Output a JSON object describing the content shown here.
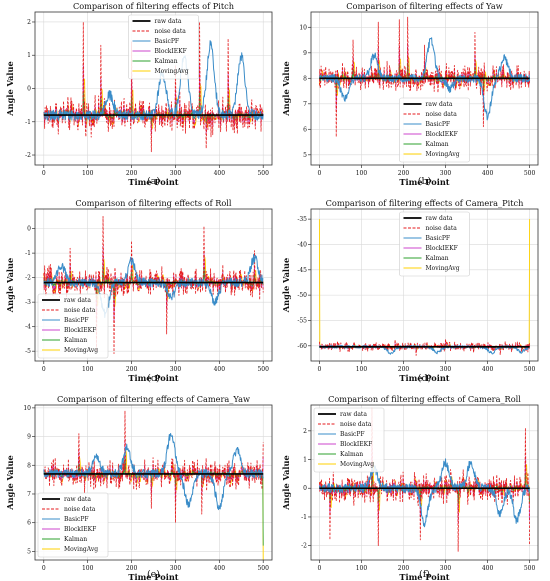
{
  "colors": {
    "raw": "#000000",
    "noise": "#e41a1c",
    "basicpf": "#3a8cc8",
    "blockiekf": "#cc44cc",
    "kalman": "#2ca02c",
    "movingavg": "#ffd200",
    "grid": "#d9d9d9",
    "axis": "#333333"
  },
  "chart_data": [
    {
      "type": "line",
      "panel_label": "(a)",
      "title": "Comparison of filtering effects of Pitch",
      "xlabel": "Time Point",
      "ylabel": "Angle Value",
      "xlim": [
        -20,
        520
      ],
      "ylim": [
        -2.3,
        2.3
      ],
      "xticks": [
        0,
        100,
        200,
        300,
        400,
        500
      ],
      "yticks": [
        -2,
        -1,
        0,
        1,
        2
      ],
      "grid": true,
      "legend": "top-center",
      "legend_entries": [
        "raw data",
        "noise data",
        "BasicPF",
        "BlockIEKF",
        "Kalman",
        "MovingAvg"
      ],
      "base_value": -0.8,
      "noise_amplitude": 0.35,
      "basicpf_excursions": [
        [
          150,
          -0.2
        ],
        [
          270,
          0.5
        ],
        [
          320,
          1.0
        ],
        [
          380,
          1.3
        ],
        [
          450,
          1.0
        ]
      ],
      "noise_spikes": [
        [
          90,
          2.0
        ],
        [
          130,
          1.3
        ],
        [
          200,
          1.4
        ],
        [
          245,
          -1.9
        ],
        [
          300,
          0.7
        ],
        [
          355,
          2.0
        ],
        [
          370,
          -1.8
        ],
        [
          420,
          1.5
        ]
      ]
    },
    {
      "type": "line",
      "panel_label": "(b)",
      "title": "Comparison of filtering effects of Yaw",
      "xlabel": "Time Point",
      "ylabel": "Angle Value",
      "xlim": [
        -20,
        520
      ],
      "ylim": [
        4.6,
        10.6
      ],
      "xticks": [
        0,
        100,
        200,
        300,
        400,
        500
      ],
      "yticks": [
        5,
        6,
        7,
        8,
        9,
        10
      ],
      "grid": true,
      "legend": "bottom-center",
      "legend_entries": [
        "raw data",
        "noise data",
        "BasicPF",
        "BlockIEKF",
        "Kalman",
        "MovingAvg"
      ],
      "base_value": 8.0,
      "noise_amplitude": 0.35,
      "basicpf_excursions": [
        [
          60,
          7.2
        ],
        [
          130,
          8.9
        ],
        [
          265,
          9.5
        ],
        [
          310,
          7.6
        ],
        [
          400,
          6.5
        ],
        [
          440,
          8.8
        ]
      ],
      "noise_spikes": [
        [
          40,
          5.7
        ],
        [
          80,
          9.5
        ],
        [
          140,
          10.2
        ],
        [
          190,
          10.3
        ],
        [
          210,
          10.4
        ],
        [
          250,
          9.3
        ],
        [
          370,
          9.8
        ],
        [
          390,
          6.1
        ]
      ]
    },
    {
      "type": "line",
      "panel_label": "(c)",
      "title": "Comparison of filtering effects of Roll",
      "xlabel": "Time Point",
      "ylabel": "Angle Value",
      "xlim": [
        -20,
        520
      ],
      "ylim": [
        -5.4,
        0.8
      ],
      "xticks": [
        0,
        100,
        200,
        300,
        400,
        500
      ],
      "yticks": [
        -5,
        -4,
        -3,
        -2,
        -1,
        0
      ],
      "grid": true,
      "legend": "bottom-left",
      "legend_entries": [
        "raw data",
        "noise data",
        "BasicPF",
        "BlockIEKF",
        "Kalman",
        "MovingAvg"
      ],
      "base_value": -2.2,
      "noise_amplitude": 0.4,
      "basicpf_excursions": [
        [
          40,
          -1.5
        ],
        [
          140,
          -3.5
        ],
        [
          200,
          -1.3
        ],
        [
          290,
          -2.8
        ],
        [
          390,
          -3.0
        ],
        [
          480,
          -1.2
        ]
      ],
      "noise_spikes": [
        [
          60,
          -0.8
        ],
        [
          120,
          -5.0
        ],
        [
          135,
          0.5
        ],
        [
          160,
          -5.1
        ],
        [
          200,
          -0.5
        ],
        [
          280,
          -4.3
        ],
        [
          365,
          0.1
        ],
        [
          480,
          -0.9
        ]
      ]
    },
    {
      "type": "line",
      "panel_label": "(d)",
      "title": "Comparison of filtering effects of Camera_Pitch",
      "xlabel": "Time Point",
      "ylabel": "Angle Value",
      "xlim": [
        -20,
        520
      ],
      "ylim": [
        -63,
        -33
      ],
      "xticks": [
        0,
        100,
        200,
        300,
        400,
        500
      ],
      "yticks": [
        -60,
        -55,
        -50,
        -45,
        -40,
        -35
      ],
      "grid": true,
      "legend": "top-center",
      "legend_entries": [
        "raw data",
        "noise data",
        "BasicPF",
        "BlockIEKF",
        "Kalman",
        "MovingAvg"
      ],
      "base_value": -60.2,
      "noise_amplitude": 0.6,
      "basicpf_excursions": [
        [
          170,
          -61.5
        ],
        [
          280,
          -61.3
        ],
        [
          410,
          -61.4
        ],
        [
          480,
          -61.2
        ]
      ],
      "noise_spikes": [
        [
          180,
          -58.8
        ],
        [
          230,
          -61.9
        ],
        [
          300,
          -58.6
        ],
        [
          430,
          -61.8
        ]
      ],
      "edge_spike": -35
    },
    {
      "type": "line",
      "panel_label": "(e)",
      "title": "Comparison of filtering effects of Camera_Yaw",
      "xlabel": "Time Point",
      "ylabel": "Angle Value",
      "xlim": [
        -20,
        520
      ],
      "ylim": [
        4.7,
        10.1
      ],
      "xticks": [
        0,
        100,
        200,
        300,
        400,
        500
      ],
      "yticks": [
        5,
        6,
        7,
        8,
        9,
        10
      ],
      "grid": true,
      "legend": "bottom-left",
      "legend_entries": [
        "raw data",
        "noise data",
        "BasicPF",
        "BlockIEKF",
        "Kalman",
        "MovingAvg"
      ],
      "base_value": 7.7,
      "noise_amplitude": 0.35,
      "basicpf_excursions": [
        [
          120,
          8.3
        ],
        [
          190,
          8.6
        ],
        [
          290,
          9.1
        ],
        [
          330,
          6.6
        ],
        [
          400,
          6.5
        ],
        [
          440,
          8.5
        ]
      ],
      "noise_spikes": [
        [
          80,
          9.1
        ],
        [
          185,
          9.9
        ],
        [
          245,
          6.5
        ],
        [
          300,
          6.0
        ],
        [
          360,
          6.3
        ],
        [
          500,
          8.8
        ]
      ],
      "end_drop": 4.7
    },
    {
      "type": "line",
      "panel_label": "(f)",
      "title": "Comparison of filtering effects of Camera_Roll",
      "xlabel": "Time Point",
      "ylabel": "Angle Value",
      "xlim": [
        -20,
        520
      ],
      "ylim": [
        -2.5,
        2.9
      ],
      "xticks": [
        0,
        100,
        200,
        300,
        400,
        500
      ],
      "yticks": [
        -2,
        -1,
        0,
        1,
        2
      ],
      "grid": true,
      "legend": "top-left",
      "legend_entries": [
        "raw data",
        "noise data",
        "BasicPF",
        "BlockIEKF",
        "Kalman",
        "MovingAvg"
      ],
      "base_value": 0.0,
      "noise_amplitude": 0.35,
      "basicpf_excursions": [
        [
          130,
          0.7
        ],
        [
          250,
          -1.2
        ],
        [
          300,
          0.9
        ],
        [
          360,
          0.9
        ],
        [
          430,
          -0.9
        ],
        [
          470,
          -1.1
        ]
      ],
      "noise_spikes": [
        [
          25,
          -1.8
        ],
        [
          125,
          2.8
        ],
        [
          140,
          -2.0
        ],
        [
          240,
          -1.8
        ],
        [
          330,
          -2.2
        ],
        [
          490,
          2.1
        ],
        [
          500,
          -2.0
        ]
      ]
    }
  ]
}
